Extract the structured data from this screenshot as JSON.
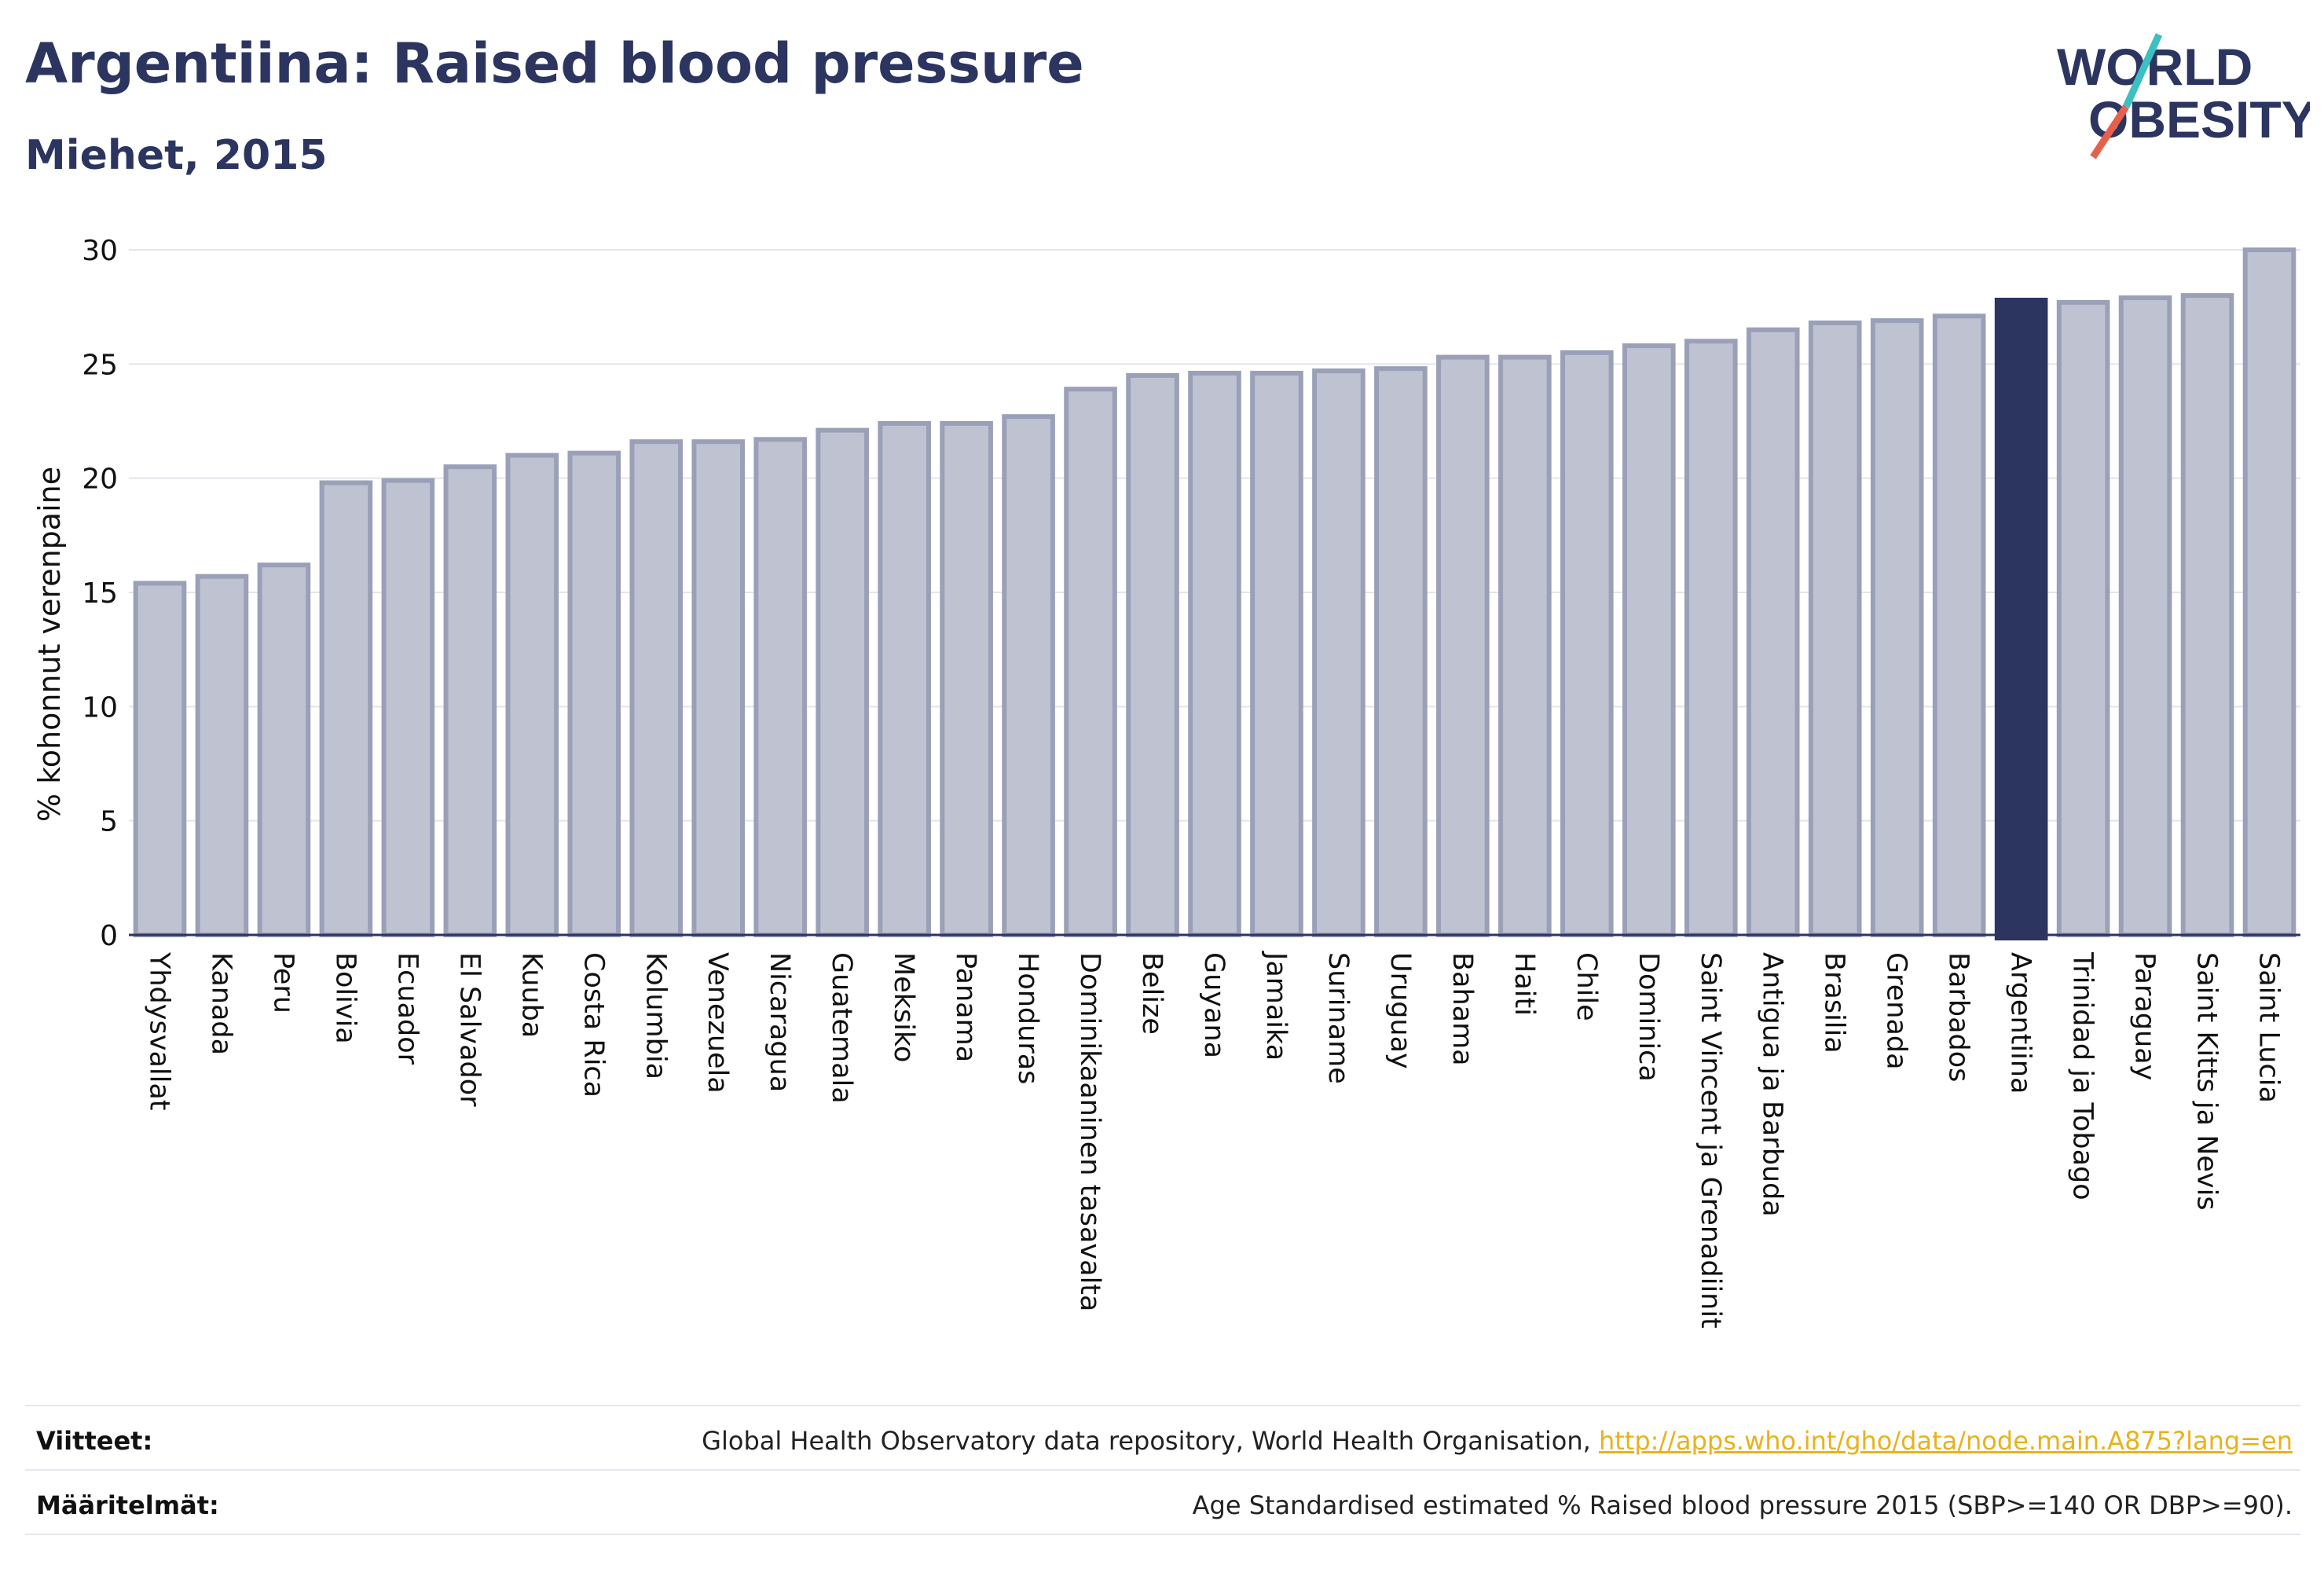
{
  "header": {
    "title": "Argentiina: Raised blood pressure",
    "subtitle": "Miehet, 2015"
  },
  "logo": {
    "line1": "W",
    "line1b": "RLD",
    "line2": "BESITY",
    "colors": {
      "text": "#2b3560",
      "slash_teal": "#3bbfc1",
      "slash_coral": "#e8604c"
    }
  },
  "chart_data": {
    "type": "bar",
    "ylabel": "% kohonnut verenpaine",
    "ylim": [
      0,
      30
    ],
    "yticks": [
      0,
      5,
      10,
      15,
      20,
      25,
      30
    ],
    "grid": true,
    "categories": [
      "Yhdysvallat",
      "Kanada",
      "Peru",
      "Bolivia",
      "Ecuador",
      "El Salvador",
      "Kuuba",
      "Costa Rica",
      "Kolumbia",
      "Venezuela",
      "Nicaragua",
      "Guatemala",
      "Meksiko",
      "Panama",
      "Honduras",
      "Dominikaaninen tasavalta",
      "Belize",
      "Guyana",
      "Jamaika",
      "Suriname",
      "Uruguay",
      "Bahama",
      "Haiti",
      "Chile",
      "Dominica",
      "Saint Vincent ja Grenadiinit",
      "Antigua ja Barbuda",
      "Brasilia",
      "Grenada",
      "Barbados",
      "Argentiina",
      "Trinidad ja Tobago",
      "Paraguay",
      "Saint Kitts ja Nevis",
      "Saint Lucia"
    ],
    "values": [
      15.4,
      15.7,
      16.2,
      19.8,
      19.9,
      20.5,
      21.0,
      21.1,
      21.6,
      21.6,
      21.7,
      22.1,
      22.4,
      22.4,
      22.7,
      23.9,
      24.5,
      24.6,
      24.6,
      24.7,
      24.8,
      25.3,
      25.3,
      25.5,
      25.8,
      26.0,
      26.5,
      26.8,
      26.9,
      27.1,
      27.8,
      27.7,
      27.9,
      28.0,
      30.0
    ],
    "highlight": "Argentiina",
    "colors": {
      "bar": "#bfc3d1",
      "bar_stroke": "#9aa0b8",
      "highlight": "#2b3560",
      "grid": "#e3e5ec",
      "axis": "#2b3560"
    }
  },
  "footer": {
    "sources_label": "Viitteet:",
    "sources_text": "Global Health Observatory data repository, World Health Organisation, ",
    "sources_link": "http://apps.who.int/gho/data/node.main.A875?lang=en",
    "definitions_label": "Määritelmät:",
    "definitions_text": "Age Standardised estimated % Raised blood pressure 2015 (SBP>=140 OR DBP>=90)."
  }
}
